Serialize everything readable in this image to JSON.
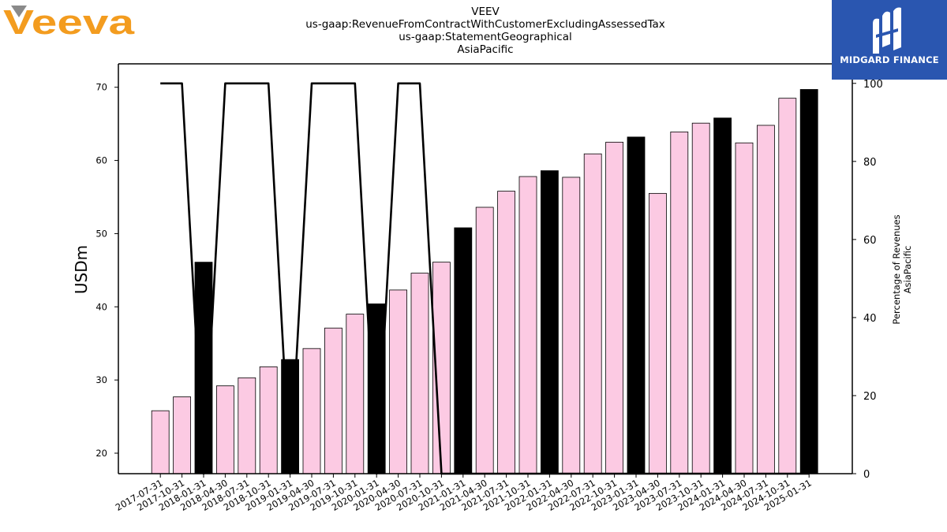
{
  "logos": {
    "left_text": "Veeva",
    "left_color": "#f39c1f",
    "right_text": "MIDGARD FINANCE",
    "right_bg": "#2a56b0"
  },
  "chart_data": {
    "type": "bar",
    "title_lines": [
      "VEEV",
      "us-gaap:RevenueFromContractWithCustomerExcludingAssessedTax",
      "us-gaap:StatementGeographical",
      "AsiaPacific"
    ],
    "ylabel": "USDm",
    "y2label_lines": [
      "Percentage of Revenues",
      "AsiaPacific"
    ],
    "ylim": [
      17.2,
      73.2
    ],
    "y2lim": [
      0,
      105
    ],
    "yticks": [
      20,
      30,
      40,
      50,
      60,
      70
    ],
    "y2ticks": [
      0,
      20,
      40,
      60,
      80,
      100
    ],
    "categories": [
      "2017-07-31",
      "2017-10-31",
      "2018-01-31",
      "2018-04-30",
      "2018-07-31",
      "2018-10-31",
      "2019-01-31",
      "2019-04-30",
      "2019-07-31",
      "2019-10-31",
      "2020-01-31",
      "2020-04-30",
      "2020-07-31",
      "2020-10-31",
      "2021-01-31",
      "2021-04-30",
      "2021-07-31",
      "2021-10-31",
      "2022-01-31",
      "2022-04-30",
      "2022-07-31",
      "2022-10-31",
      "2023-01-31",
      "2023-04-30",
      "2023-07-31",
      "2023-10-31",
      "2024-01-31",
      "2024-04-30",
      "2024-07-31",
      "2024-10-31",
      "2025-01-31"
    ],
    "series": [
      {
        "type": "bar",
        "values": [
          25.8,
          27.7,
          46.1,
          29.2,
          30.3,
          31.8,
          32.8,
          34.3,
          37.1,
          39.0,
          40.4,
          42.3,
          44.6,
          46.1,
          50.8,
          53.6,
          55.8,
          57.8,
          58.6,
          57.7,
          60.9,
          62.5,
          63.2,
          55.5,
          63.9,
          65.1,
          65.8,
          62.4,
          64.8,
          68.5,
          69.7
        ],
        "fill_quarterly": "#fccae3",
        "fill_fiscal_year_end": "#000000",
        "highlighted_indices": [
          2,
          6,
          10,
          14,
          18,
          22,
          26,
          30
        ]
      },
      {
        "type": "line",
        "axis": "right",
        "values": [
          100,
          100,
          0,
          100,
          100,
          100,
          0,
          100,
          100,
          100,
          0,
          100,
          100,
          0,
          0,
          0,
          0,
          0,
          0,
          0,
          0,
          0,
          0,
          0,
          0,
          0,
          0,
          0,
          0,
          0,
          0
        ],
        "color": "#000000"
      }
    ],
    "grid": false,
    "legend": "none"
  }
}
